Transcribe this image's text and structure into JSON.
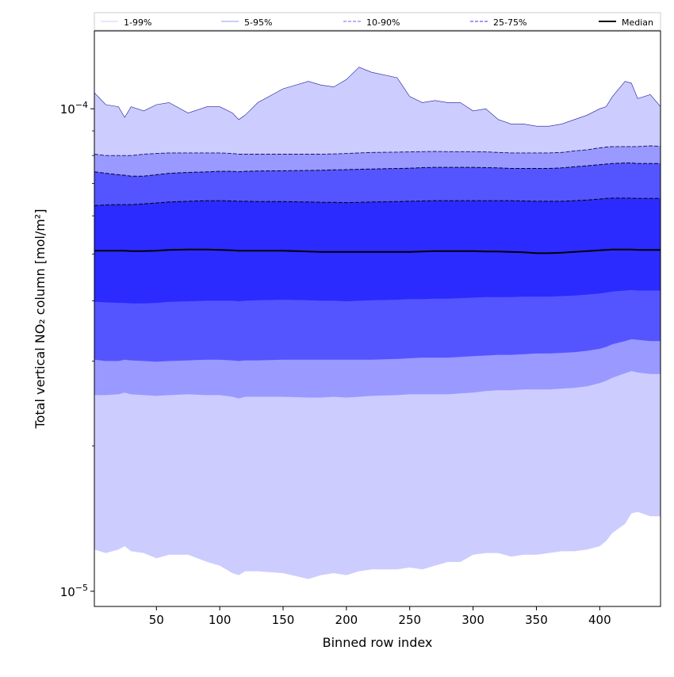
{
  "chart_data": {
    "type": "area",
    "title": "",
    "xlabel": "Binned row index",
    "ylabel": "Total vertical NO₂ column [mol/m²]",
    "x_scale": "linear",
    "y_scale": "log",
    "xlim": [
      1,
      448
    ],
    "ylim": [
      9.3e-06,
      0.000145
    ],
    "x_ticks": [
      50,
      100,
      150,
      200,
      250,
      300,
      350,
      400
    ],
    "x_tick_labels": [
      "50",
      "100",
      "150",
      "200",
      "250",
      "300",
      "350",
      "400"
    ],
    "y_major_ticks": [
      1e-05,
      0.0001
    ],
    "y_tick_labels": [
      {
        "base": "10",
        "exp": "−5"
      },
      {
        "base": "10",
        "exp": "−4"
      }
    ],
    "grid": false,
    "legend": {
      "placement": "top",
      "entries": [
        {
          "label": "1-99%",
          "color": "#ccccff",
          "style": "solid"
        },
        {
          "label": "5-95%",
          "color": "#9999ff",
          "style": "solid"
        },
        {
          "label": "10-90%",
          "color": "#6666ff",
          "style": "dashed"
        },
        {
          "label": "25-75%",
          "color": "#3333ff",
          "style": "dashed"
        },
        {
          "label": "Median",
          "color": "#000000",
          "style": "solid"
        }
      ]
    },
    "x": [
      1,
      10,
      20,
      25,
      30,
      40,
      50,
      60,
      75,
      90,
      100,
      110,
      115,
      120,
      130,
      150,
      170,
      180,
      190,
      200,
      210,
      220,
      240,
      250,
      260,
      270,
      280,
      290,
      300,
      310,
      320,
      330,
      340,
      350,
      360,
      370,
      380,
      390,
      400,
      405,
      410,
      420,
      425,
      430,
      440,
      448
    ],
    "series": [
      {
        "name": "1-99%",
        "color": "#ccccff",
        "lower": [
          1.22e-05,
          1.2e-05,
          1.22e-05,
          1.24e-05,
          1.21e-05,
          1.2e-05,
          1.17e-05,
          1.19e-05,
          1.19e-05,
          1.15e-05,
          1.13e-05,
          1.09e-05,
          1.08e-05,
          1.1e-05,
          1.1e-05,
          1.09e-05,
          1.06e-05,
          1.08e-05,
          1.09e-05,
          1.08e-05,
          1.1e-05,
          1.11e-05,
          1.11e-05,
          1.12e-05,
          1.11e-05,
          1.13e-05,
          1.15e-05,
          1.15e-05,
          1.19e-05,
          1.2e-05,
          1.2e-05,
          1.18e-05,
          1.19e-05,
          1.19e-05,
          1.2e-05,
          1.21e-05,
          1.21e-05,
          1.22e-05,
          1.24e-05,
          1.27e-05,
          1.32e-05,
          1.38e-05,
          1.45e-05,
          1.46e-05,
          1.43e-05,
          1.43e-05
        ],
        "upper": [
          0.000108,
          0.000102,
          0.000101,
          9.6e-05,
          0.000101,
          9.9e-05,
          0.000102,
          0.000103,
          9.8e-05,
          0.000101,
          0.000101,
          9.8e-05,
          9.5e-05,
          9.7e-05,
          0.000103,
          0.00011,
          0.000114,
          0.000112,
          0.000111,
          0.000115,
          0.000122,
          0.000119,
          0.000116,
          0.000106,
          0.000103,
          0.000104,
          0.000103,
          0.000103,
          9.9e-05,
          0.0001,
          9.5e-05,
          9.3e-05,
          9.3e-05,
          9.2e-05,
          9.2e-05,
          9.3e-05,
          9.5e-05,
          9.7e-05,
          0.0001,
          0.000101,
          0.000106,
          0.000114,
          0.000113,
          0.000105,
          0.000107,
          0.000101
        ]
      },
      {
        "name": "5-95%",
        "color": "#9999ff",
        "lower": [
          2.55e-05,
          2.55e-05,
          2.56e-05,
          2.58e-05,
          2.56e-05,
          2.55e-05,
          2.54e-05,
          2.55e-05,
          2.56e-05,
          2.55e-05,
          2.55e-05,
          2.53e-05,
          2.51e-05,
          2.53e-05,
          2.53e-05,
          2.53e-05,
          2.52e-05,
          2.52e-05,
          2.53e-05,
          2.52e-05,
          2.53e-05,
          2.54e-05,
          2.55e-05,
          2.56e-05,
          2.56e-05,
          2.56e-05,
          2.56e-05,
          2.57e-05,
          2.58e-05,
          2.6e-05,
          2.61e-05,
          2.61e-05,
          2.62e-05,
          2.62e-05,
          2.62e-05,
          2.63e-05,
          2.64e-05,
          2.66e-05,
          2.7e-05,
          2.73e-05,
          2.77e-05,
          2.83e-05,
          2.86e-05,
          2.84e-05,
          2.82e-05,
          2.82e-05
        ],
        "upper": [
          8.05e-05,
          8e-05,
          8e-05,
          8e-05,
          8e-05,
          8.05e-05,
          8.08e-05,
          8.1e-05,
          8.1e-05,
          8.1e-05,
          8.1e-05,
          8.08e-05,
          8.05e-05,
          8.05e-05,
          8.05e-05,
          8.05e-05,
          8.05e-05,
          8.05e-05,
          8.06e-05,
          8.08e-05,
          8.1e-05,
          8.12e-05,
          8.13e-05,
          8.14e-05,
          8.15e-05,
          8.16e-05,
          8.15e-05,
          8.15e-05,
          8.15e-05,
          8.14e-05,
          8.12e-05,
          8.1e-05,
          8.1e-05,
          8.1e-05,
          8.1e-05,
          8.12e-05,
          8.18e-05,
          8.22e-05,
          8.3e-05,
          8.33e-05,
          8.35e-05,
          8.35e-05,
          8.35e-05,
          8.35e-05,
          8.38e-05,
          8.36e-05
        ]
      },
      {
        "name": "10-90%",
        "color": "#5555ff",
        "lower": [
          3.02e-05,
          3e-05,
          3e-05,
          3.02e-05,
          3.01e-05,
          3e-05,
          2.99e-05,
          3e-05,
          3.01e-05,
          3.02e-05,
          3.02e-05,
          3.01e-05,
          3e-05,
          3.01e-05,
          3.01e-05,
          3.02e-05,
          3.02e-05,
          3.02e-05,
          3.02e-05,
          3.02e-05,
          3.02e-05,
          3.02e-05,
          3.03e-05,
          3.04e-05,
          3.05e-05,
          3.05e-05,
          3.05e-05,
          3.06e-05,
          3.07e-05,
          3.08e-05,
          3.09e-05,
          3.09e-05,
          3.1e-05,
          3.11e-05,
          3.11e-05,
          3.12e-05,
          3.13e-05,
          3.15e-05,
          3.18e-05,
          3.21e-05,
          3.25e-05,
          3.3e-05,
          3.33e-05,
          3.32e-05,
          3.3e-05,
          3.3e-05
        ],
        "upper": [
          7.4e-05,
          7.35e-05,
          7.3e-05,
          7.28e-05,
          7.25e-05,
          7.25e-05,
          7.3e-05,
          7.35e-05,
          7.38e-05,
          7.4e-05,
          7.42e-05,
          7.42e-05,
          7.4e-05,
          7.42e-05,
          7.43e-05,
          7.44e-05,
          7.45e-05,
          7.46e-05,
          7.47e-05,
          7.48e-05,
          7.49e-05,
          7.5e-05,
          7.52e-05,
          7.53e-05,
          7.55e-05,
          7.56e-05,
          7.56e-05,
          7.56e-05,
          7.56e-05,
          7.55e-05,
          7.54e-05,
          7.52e-05,
          7.52e-05,
          7.52e-05,
          7.52e-05,
          7.54e-05,
          7.58e-05,
          7.62e-05,
          7.66e-05,
          7.68e-05,
          7.7e-05,
          7.72e-05,
          7.72e-05,
          7.7e-05,
          7.7e-05,
          7.7e-05
        ]
      },
      {
        "name": "25-75%",
        "color": "#2b2bff",
        "lower": [
          3.98e-05,
          3.97e-05,
          3.96e-05,
          3.96e-05,
          3.95e-05,
          3.95e-05,
          3.96e-05,
          3.98e-05,
          3.99e-05,
          4e-05,
          4e-05,
          4e-05,
          3.99e-05,
          4e-05,
          4.01e-05,
          4.02e-05,
          4.01e-05,
          4e-05,
          4e-05,
          3.99e-05,
          4e-05,
          4.01e-05,
          4.02e-05,
          4.03e-05,
          4.03e-05,
          4.04e-05,
          4.04e-05,
          4.05e-05,
          4.06e-05,
          4.07e-05,
          4.07e-05,
          4.07e-05,
          4.08e-05,
          4.08e-05,
          4.08e-05,
          4.09e-05,
          4.1e-05,
          4.12e-05,
          4.14e-05,
          4.16e-05,
          4.18e-05,
          4.2e-05,
          4.21e-05,
          4.2e-05,
          4.2e-05,
          4.2e-05
        ],
        "upper": [
          6.3e-05,
          6.32e-05,
          6.33e-05,
          6.33e-05,
          6.33e-05,
          6.35e-05,
          6.38e-05,
          6.41e-05,
          6.43e-05,
          6.45e-05,
          6.45e-05,
          6.44e-05,
          6.43e-05,
          6.43e-05,
          6.42e-05,
          6.42e-05,
          6.41e-05,
          6.4e-05,
          6.4e-05,
          6.39e-05,
          6.4e-05,
          6.41e-05,
          6.42e-05,
          6.43e-05,
          6.44e-05,
          6.45e-05,
          6.45e-05,
          6.45e-05,
          6.45e-05,
          6.45e-05,
          6.45e-05,
          6.45e-05,
          6.44e-05,
          6.43e-05,
          6.43e-05,
          6.43e-05,
          6.45e-05,
          6.47e-05,
          6.5e-05,
          6.52e-05,
          6.53e-05,
          6.53e-05,
          6.53e-05,
          6.52e-05,
          6.52e-05,
          6.52e-05
        ]
      },
      {
        "name": "Median",
        "color": "#000000",
        "values": [
          5.08e-05,
          5.08e-05,
          5.08e-05,
          5.08e-05,
          5.07e-05,
          5.07e-05,
          5.08e-05,
          5.1e-05,
          5.11e-05,
          5.11e-05,
          5.1e-05,
          5.09e-05,
          5.08e-05,
          5.08e-05,
          5.08e-05,
          5.08e-05,
          5.06e-05,
          5.05e-05,
          5.05e-05,
          5.05e-05,
          5.05e-05,
          5.05e-05,
          5.05e-05,
          5.05e-05,
          5.06e-05,
          5.07e-05,
          5.07e-05,
          5.07e-05,
          5.07e-05,
          5.06e-05,
          5.06e-05,
          5.05e-05,
          5.04e-05,
          5.02e-05,
          5.02e-05,
          5.03e-05,
          5.05e-05,
          5.07e-05,
          5.09e-05,
          5.1e-05,
          5.11e-05,
          5.11e-05,
          5.11e-05,
          5.1e-05,
          5.1e-05,
          5.1e-05
        ]
      }
    ]
  }
}
